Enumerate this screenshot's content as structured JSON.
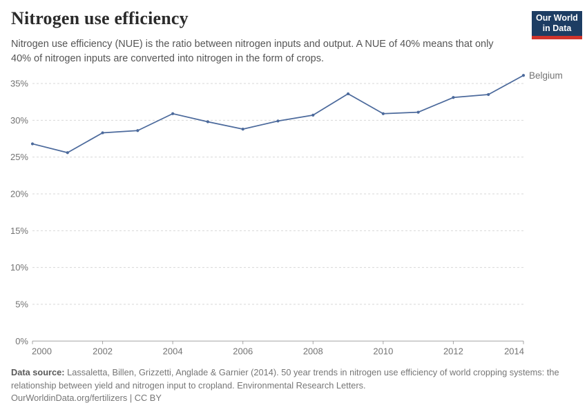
{
  "header": {
    "title": "Nitrogen use efficiency",
    "subtitle": "Nitrogen use efficiency (NUE) is the ratio between nitrogen inputs and output. A NUE of 40% means that only 40% of nitrogen inputs are converted into nitrogen in the form of crops.",
    "logo": {
      "line1": "Our World",
      "line2": "in Data"
    }
  },
  "chart_data": {
    "type": "line",
    "title": "Nitrogen use efficiency",
    "x": [
      2000,
      2001,
      2002,
      2003,
      2004,
      2005,
      2006,
      2007,
      2008,
      2009,
      2010,
      2011,
      2012,
      2013,
      2014
    ],
    "series": [
      {
        "name": "Belgium",
        "values": [
          26.8,
          25.6,
          28.3,
          28.6,
          30.9,
          29.8,
          28.8,
          29.9,
          30.7,
          33.6,
          30.9,
          31.1,
          33.1,
          33.5,
          36.1
        ]
      }
    ],
    "xlabel": "",
    "ylabel": "",
    "ylim": [
      0,
      35
    ],
    "xlim": [
      2000,
      2014
    ],
    "y_ticks": [
      0,
      5,
      10,
      15,
      20,
      25,
      30,
      35
    ],
    "y_tick_suffix": "%",
    "x_ticks": [
      2000,
      2002,
      2004,
      2006,
      2008,
      2010,
      2012,
      2014
    ],
    "grid": "horizontal-dashed",
    "legend_position": "end-of-line-label"
  },
  "footer": {
    "source_label": "Data source:",
    "source_text": "Lassaletta, Billen, Grizzetti, Anglade & Garnier (2014). 50 year trends in nitrogen use efficiency of world cropping systems: the relationship between yield and nitrogen input to cropland. Environmental Research Letters.",
    "url": "OurWorldinData.org/fertilizers",
    "separator": "|",
    "license": "CC BY"
  },
  "colors": {
    "line": "#4c6a9c",
    "series_label": "#44639c",
    "grid": "#d7d7d7",
    "axis": "#a3a3a3",
    "tick_label": "#737373",
    "logo_background": "#1d3d63",
    "logo_stripe": "#d0342c"
  }
}
